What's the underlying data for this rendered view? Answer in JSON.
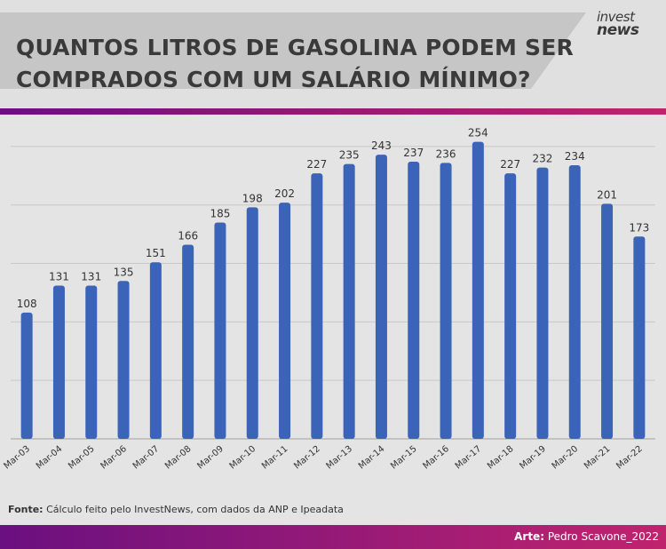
{
  "header": {
    "title_line1": "QUANTOS LITROS DE GASOLINA PODEM SER",
    "title_line2": "COMPRADOS COM UM SALÁRIO MÍNIMO?",
    "logo_line1": "invest",
    "logo_line2": "news"
  },
  "footer": {
    "source_label": "Fonte:",
    "source_text": " Cálculo feito pelo InvestNews, com dados da ANP e Ipeadata",
    "credit_label": "Arte:",
    "credit_text": " Pedro Scavone_2022"
  },
  "colors": {
    "bar": "#3b64b8",
    "accent_start": "#6a1080",
    "accent_end": "#c0236e"
  },
  "chart_data": {
    "type": "bar",
    "categories": [
      "Mar-03",
      "Mar-04",
      "Mar-05",
      "Mar-06",
      "Mar-07",
      "Mar-08",
      "Mar-09",
      "Mar-10",
      "Mar-11",
      "Mar-12",
      "Mar-13",
      "Mar-14",
      "Mar-15",
      "Mar-16",
      "Mar-17",
      "Mar-18",
      "Mar-19",
      "Mar-20",
      "Mar-21",
      "Mar-22"
    ],
    "values": [
      108,
      131,
      131,
      135,
      151,
      166,
      185,
      198,
      202,
      227,
      235,
      243,
      237,
      236,
      254,
      227,
      232,
      234,
      201,
      173
    ],
    "ylim": [
      0,
      275
    ],
    "grid": true,
    "data_labels": true
  }
}
